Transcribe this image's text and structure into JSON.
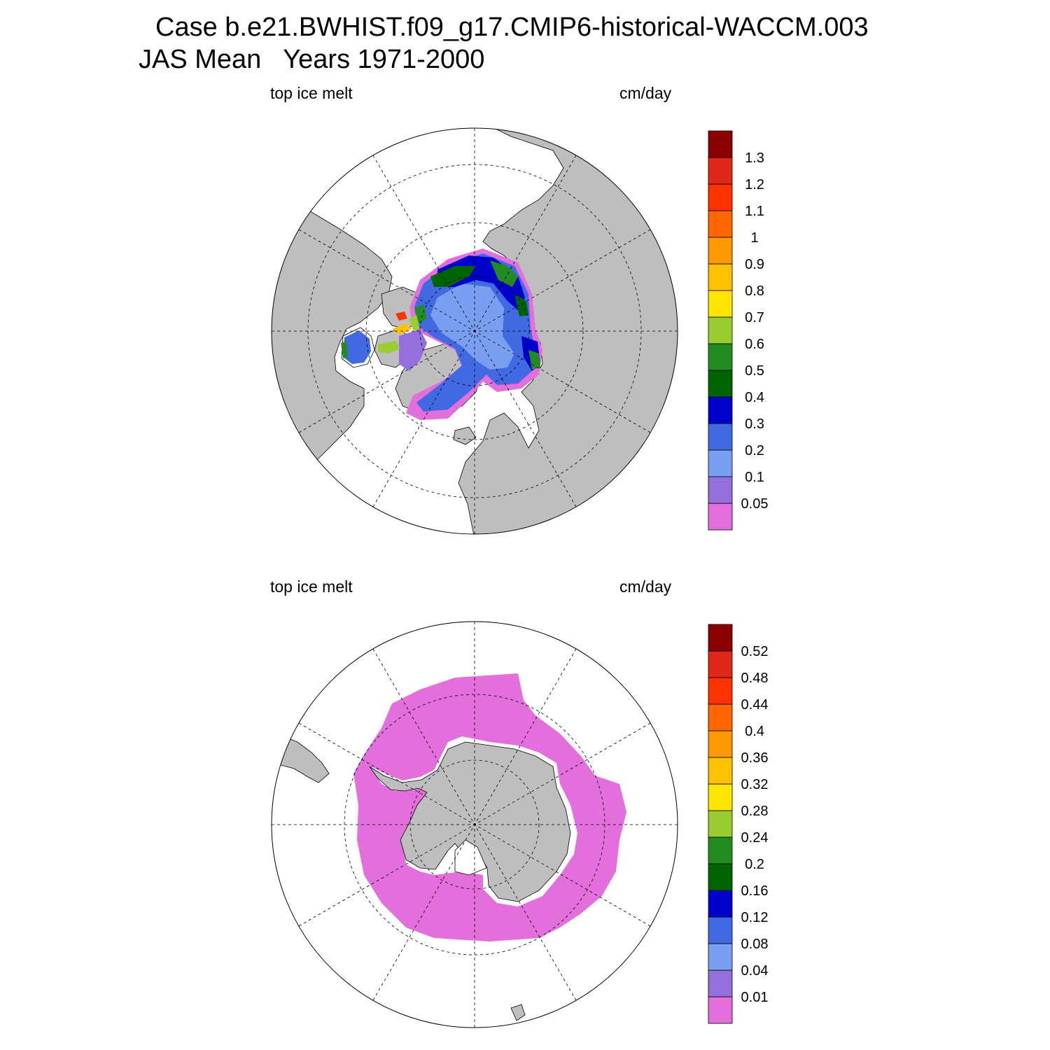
{
  "header": {
    "case_title": "Case b.e21.BWHIST.f09_g17.CMIP6-historical-WACCM.003",
    "period_title": "JAS Mean   Years 1971-2000"
  },
  "panels": [
    {
      "id": "north",
      "hemisphere": "Arctic (north polar stereographic)",
      "left_label": "top ice melt",
      "right_label": "cm/day",
      "colorbar": {
        "colors": [
          "#e26fdc",
          "#9370db",
          "#7a9ef0",
          "#4169e1",
          "#0000cd",
          "#006400",
          "#228b22",
          "#9acd32",
          "#ffe600",
          "#ffc200",
          "#ff9900",
          "#ff6600",
          "#ff3300",
          "#e0281a",
          "#8b0000"
        ],
        "levels": [
          "0.05",
          "0.1",
          "0.2",
          "0.3",
          "0.4",
          "0.5",
          "0.6",
          "0.7",
          "0.8",
          "0.9",
          "1",
          "1.1",
          "1.2",
          "1.3"
        ]
      }
    },
    {
      "id": "south",
      "hemisphere": "Antarctic (south polar stereographic)",
      "left_label": "top ice melt",
      "right_label": "cm/day",
      "colorbar": {
        "colors": [
          "#e26fdc",
          "#9370db",
          "#7a9ef0",
          "#4169e1",
          "#0000cd",
          "#006400",
          "#228b22",
          "#9acd32",
          "#ffe600",
          "#ffc200",
          "#ff9900",
          "#ff6600",
          "#ff3300",
          "#e0281a",
          "#8b0000"
        ],
        "levels": [
          "0.01",
          "0.04",
          "0.08",
          "0.12",
          "0.16",
          "0.2",
          "0.24",
          "0.28",
          "0.32",
          "0.36",
          "0.4",
          "0.44",
          "0.48",
          "0.52"
        ]
      }
    }
  ],
  "colors": {
    "land": "#bebebe",
    "ocean_no_data": "#ffffff"
  }
}
